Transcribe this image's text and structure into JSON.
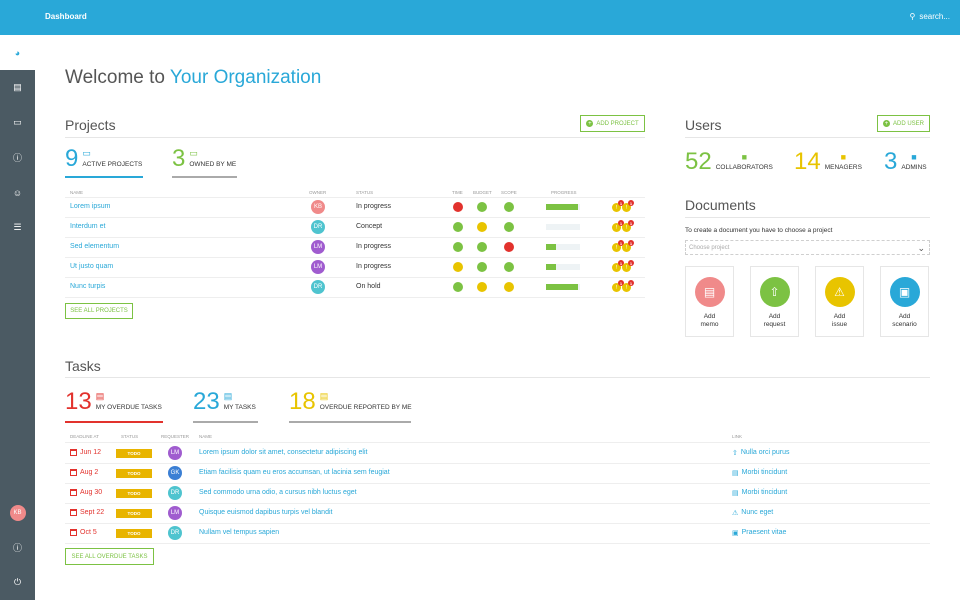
{
  "topbar": {
    "title": "Dashboard",
    "search_placeholder": "search..."
  },
  "welcome": {
    "prefix": "Welcome to ",
    "org": "Your Organization"
  },
  "projects": {
    "title": "Projects",
    "add_label": "ADD PROJECT",
    "active_count": "9",
    "active_label": "ACTIVE PROJECTS",
    "owned_count": "3",
    "owned_label": "OWNED BY ME",
    "headers": {
      "name": "NAME",
      "owner": "OWNER",
      "status": "STATUS",
      "time": "TIME",
      "budget": "BUDGET",
      "scope": "SCOPE",
      "progress": "PROGRESS"
    },
    "rows": [
      {
        "name": "Lorem ipsum",
        "owner": "KB",
        "owner_color": "#f08a8a",
        "status": "In progress",
        "time": "#e2322d",
        "budget": "#7cc243",
        "scope": "#7cc243",
        "progress": 0.95
      },
      {
        "name": "Interdum et",
        "owner": "DR",
        "owner_color": "#4fc4cf",
        "status": "Concept",
        "time": "#7cc243",
        "budget": "#e8c400",
        "scope": "#7cc243",
        "progress": 0.0
      },
      {
        "name": "Sed elementum",
        "owner": "LM",
        "owner_color": "#a05ccf",
        "status": "In progress",
        "time": "#7cc243",
        "budget": "#7cc243",
        "scope": "#e2322d",
        "progress": 0.3
      },
      {
        "name": "Ut justo quam",
        "owner": "LM",
        "owner_color": "#a05ccf",
        "status": "In progress",
        "time": "#e8c400",
        "budget": "#7cc243",
        "scope": "#7cc243",
        "progress": 0.3
      },
      {
        "name": "Nunc turpis",
        "owner": "DR",
        "owner_color": "#4fc4cf",
        "status": "On hold",
        "time": "#7cc243",
        "budget": "#e8c400",
        "scope": "#e8c400",
        "progress": 0.95
      }
    ],
    "badge_count": "1",
    "see_all": "SEE ALL PROJECTS"
  },
  "users": {
    "title": "Users",
    "add_label": "ADD USER",
    "collaborators": "52",
    "collaborators_label": "COLLABORATORS",
    "managers": "14",
    "managers_label": "MENAGERS",
    "admins": "3",
    "admins_label": "ADMINS"
  },
  "documents": {
    "title": "Documents",
    "hint": "To create a document you have to choose a project",
    "select_placeholder": "Choose project",
    "cards": [
      {
        "line1": "Add",
        "line2": "memo",
        "color": "#f08a8a",
        "icon": "memo-icon",
        "glyph": "▤"
      },
      {
        "line1": "Add",
        "line2": "request",
        "color": "#7cc243",
        "icon": "request-icon",
        "glyph": "⇧"
      },
      {
        "line1": "Add",
        "line2": "issue",
        "color": "#e8c400",
        "icon": "issue-icon",
        "glyph": "⚠"
      },
      {
        "line1": "Add",
        "line2": "scenario",
        "color": "#29a8d8",
        "icon": "scenario-icon",
        "glyph": "▣"
      }
    ]
  },
  "tasks": {
    "title": "Tasks",
    "overdue_count": "13",
    "overdue_label": "MY OVERDUE TASKS",
    "my_count": "23",
    "my_label": "MY TASKS",
    "reported_count": "18",
    "reported_label": "OVERDUE REPORTED BY ME",
    "headers": {
      "deadline": "DEADLINE AT",
      "status": "STATUS",
      "requester": "REQUESTER",
      "name": "NAME",
      "link": "LINK"
    },
    "rows": [
      {
        "date": "Jun 12",
        "status": "TODO",
        "requester": "LM",
        "req_color": "#a05ccf",
        "name": "Lorem ipsum dolor sit amet, consectetur adipiscing elit",
        "link": "Nulla orci purus",
        "link_icon": "request-icon",
        "link_glyph": "⇧"
      },
      {
        "date": "Aug 2",
        "status": "TODO",
        "requester": "GK",
        "req_color": "#3b7fd4",
        "name": "Etiam facilisis quam eu eros accumsan, ut lacinia sem feugiat",
        "link": "Morbi tincidunt",
        "link_icon": "memo-icon",
        "link_glyph": "▤"
      },
      {
        "date": "Aug 30",
        "status": "TODO",
        "requester": "DR",
        "req_color": "#4fc4cf",
        "name": "Sed commodo urna odio, a cursus nibh luctus eget",
        "link": "Morbi tincidunt",
        "link_icon": "memo-icon",
        "link_glyph": "▤"
      },
      {
        "date": "Sept 22",
        "status": "TODO",
        "requester": "LM",
        "req_color": "#a05ccf",
        "name": "Quisque euismod dapibus turpis vel blandit",
        "link": "Nunc eget",
        "link_icon": "issue-icon",
        "link_glyph": "⚠"
      },
      {
        "date": "Oct 5",
        "status": "TODO",
        "requester": "DR",
        "req_color": "#4fc4cf",
        "name": "Nullam vel tempus sapien",
        "link": "Praesent vitae",
        "link_icon": "scenario-icon",
        "link_glyph": "▣"
      }
    ],
    "see_all": "SEE ALL OVERDUE TASKS"
  },
  "sidebar": {
    "user_initials": "KB"
  },
  "colors": {
    "accent": "#29a8d8",
    "green": "#7cc243",
    "red": "#e2322d",
    "yellow": "#e8c400",
    "sidebar": "#4b5a63"
  }
}
